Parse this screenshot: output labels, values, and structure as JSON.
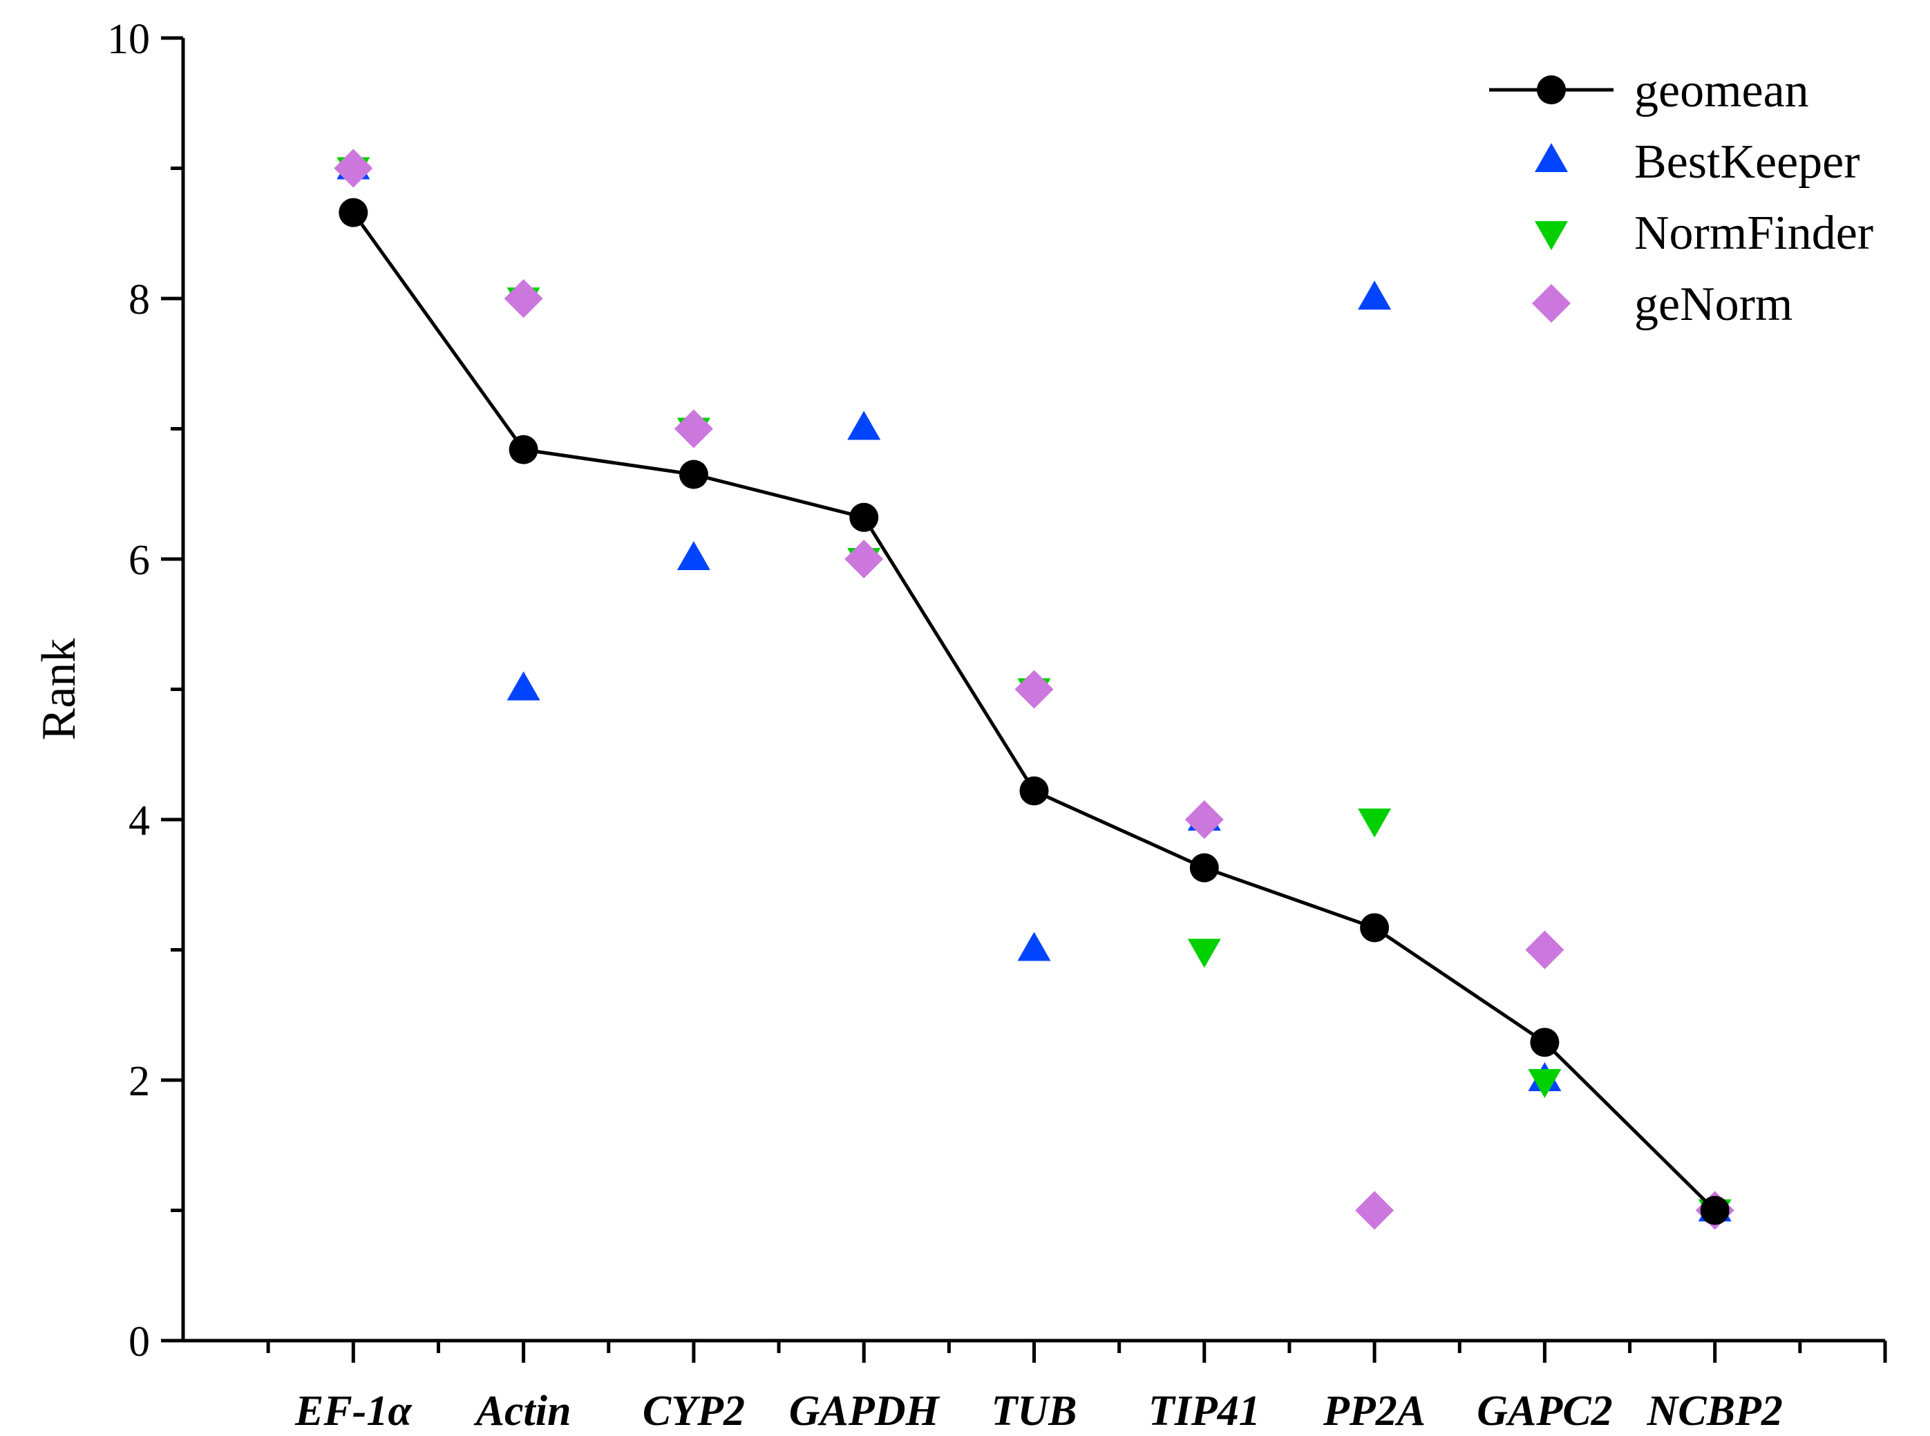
{
  "chart_data": {
    "type": "scatter",
    "title": "",
    "xlabel": "",
    "ylabel": "Rank",
    "ylim": [
      0,
      10
    ],
    "yticks": [
      "0",
      "2",
      "4",
      "6",
      "8",
      "10"
    ],
    "grid": false,
    "legend_position": "top-right",
    "categories": [
      "EF-1α",
      "Actin",
      "CYP2",
      "GAPDH",
      "TUB",
      "TIP41",
      "PP2A",
      "GAPC2",
      "NCBP2"
    ],
    "series": [
      {
        "name": "geomean",
        "marker": "circle",
        "line": true,
        "color": "#000000",
        "values": [
          8.66,
          6.84,
          6.65,
          6.32,
          4.22,
          3.63,
          3.17,
          2.29,
          1.0
        ]
      },
      {
        "name": "BestKeeper",
        "marker": "triangle-up",
        "line": false,
        "color": "#0044FF",
        "values": [
          9,
          5,
          6,
          7,
          3,
          4,
          8,
          2,
          1
        ]
      },
      {
        "name": "NormFinder",
        "marker": "triangle-down",
        "line": false,
        "color": "#00D000",
        "values": [
          9,
          8,
          7,
          6,
          5,
          3,
          4,
          2,
          1
        ]
      },
      {
        "name": "geNorm",
        "marker": "diamond",
        "line": false,
        "color": "#CC77DD",
        "values": [
          9,
          8,
          7,
          6,
          5,
          4,
          1,
          3,
          1
        ]
      }
    ]
  }
}
